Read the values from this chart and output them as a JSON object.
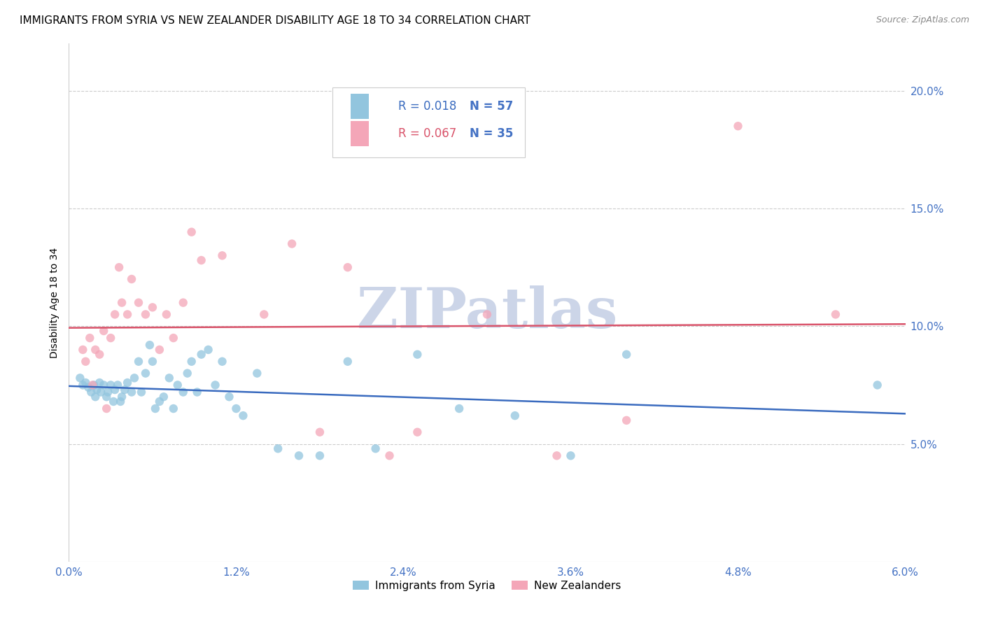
{
  "title": "IMMIGRANTS FROM SYRIA VS NEW ZEALANDER DISABILITY AGE 18 TO 34 CORRELATION CHART",
  "source": "Source: ZipAtlas.com",
  "ylabel": "Disability Age 18 to 34",
  "xlim": [
    0.0,
    6.0
  ],
  "ylim": [
    0.0,
    22.0
  ],
  "yticks": [
    5.0,
    10.0,
    15.0,
    20.0
  ],
  "xticks": [
    0.0,
    1.2,
    2.4,
    3.6,
    4.8,
    6.0
  ],
  "legend_blue_R": "R = 0.018",
  "legend_blue_N": "N = 57",
  "legend_pink_R": "R = 0.067",
  "legend_pink_N": "N = 35",
  "legend_blue_label": "Immigrants from Syria",
  "legend_pink_label": "New Zealanders",
  "blue_color": "#92c5de",
  "pink_color": "#f4a6b8",
  "blue_line_color": "#3a6bbf",
  "pink_line_color": "#d9536a",
  "blue_scatter_x": [
    0.08,
    0.1,
    0.12,
    0.14,
    0.16,
    0.18,
    0.19,
    0.2,
    0.22,
    0.23,
    0.25,
    0.27,
    0.28,
    0.3,
    0.32,
    0.33,
    0.35,
    0.37,
    0.38,
    0.4,
    0.42,
    0.45,
    0.47,
    0.5,
    0.52,
    0.55,
    0.58,
    0.6,
    0.62,
    0.65,
    0.68,
    0.72,
    0.75,
    0.78,
    0.82,
    0.85,
    0.88,
    0.92,
    0.95,
    1.0,
    1.05,
    1.1,
    1.15,
    1.2,
    1.25,
    1.35,
    1.5,
    1.65,
    1.8,
    2.0,
    2.2,
    2.5,
    2.8,
    3.2,
    3.6,
    4.0,
    5.8
  ],
  "blue_scatter_y": [
    7.8,
    7.5,
    7.6,
    7.4,
    7.2,
    7.5,
    7.0,
    7.3,
    7.6,
    7.2,
    7.5,
    7.0,
    7.2,
    7.5,
    6.8,
    7.3,
    7.5,
    6.8,
    7.0,
    7.3,
    7.6,
    7.2,
    7.8,
    8.5,
    7.2,
    8.0,
    9.2,
    8.5,
    6.5,
    6.8,
    7.0,
    7.8,
    6.5,
    7.5,
    7.2,
    8.0,
    8.5,
    7.2,
    8.8,
    9.0,
    7.5,
    8.5,
    7.0,
    6.5,
    6.2,
    8.0,
    4.8,
    4.5,
    4.5,
    8.5,
    4.8,
    8.8,
    6.5,
    6.2,
    4.5,
    8.8,
    7.5
  ],
  "pink_scatter_x": [
    0.1,
    0.12,
    0.15,
    0.17,
    0.19,
    0.22,
    0.25,
    0.27,
    0.3,
    0.33,
    0.36,
    0.38,
    0.42,
    0.45,
    0.5,
    0.55,
    0.6,
    0.65,
    0.7,
    0.75,
    0.82,
    0.88,
    0.95,
    1.1,
    1.4,
    1.6,
    1.8,
    2.0,
    2.3,
    2.5,
    3.0,
    3.5,
    4.0,
    4.8,
    5.5
  ],
  "pink_scatter_y": [
    9.0,
    8.5,
    9.5,
    7.5,
    9.0,
    8.8,
    9.8,
    6.5,
    9.5,
    10.5,
    12.5,
    11.0,
    10.5,
    12.0,
    11.0,
    10.5,
    10.8,
    9.0,
    10.5,
    9.5,
    11.0,
    14.0,
    12.8,
    13.0,
    10.5,
    13.5,
    5.5,
    12.5,
    4.5,
    5.5,
    10.5,
    4.5,
    6.0,
    18.5,
    10.5
  ],
  "watermark": "ZIPatlas",
  "watermark_color": "#ccd5e8",
  "background_color": "#ffffff",
  "grid_color": "#cccccc",
  "axis_color": "#4472c4",
  "title_fontsize": 11,
  "axis_label_fontsize": 10,
  "tick_fontsize": 11,
  "legend_fontsize": 12,
  "scatter_size": 80
}
